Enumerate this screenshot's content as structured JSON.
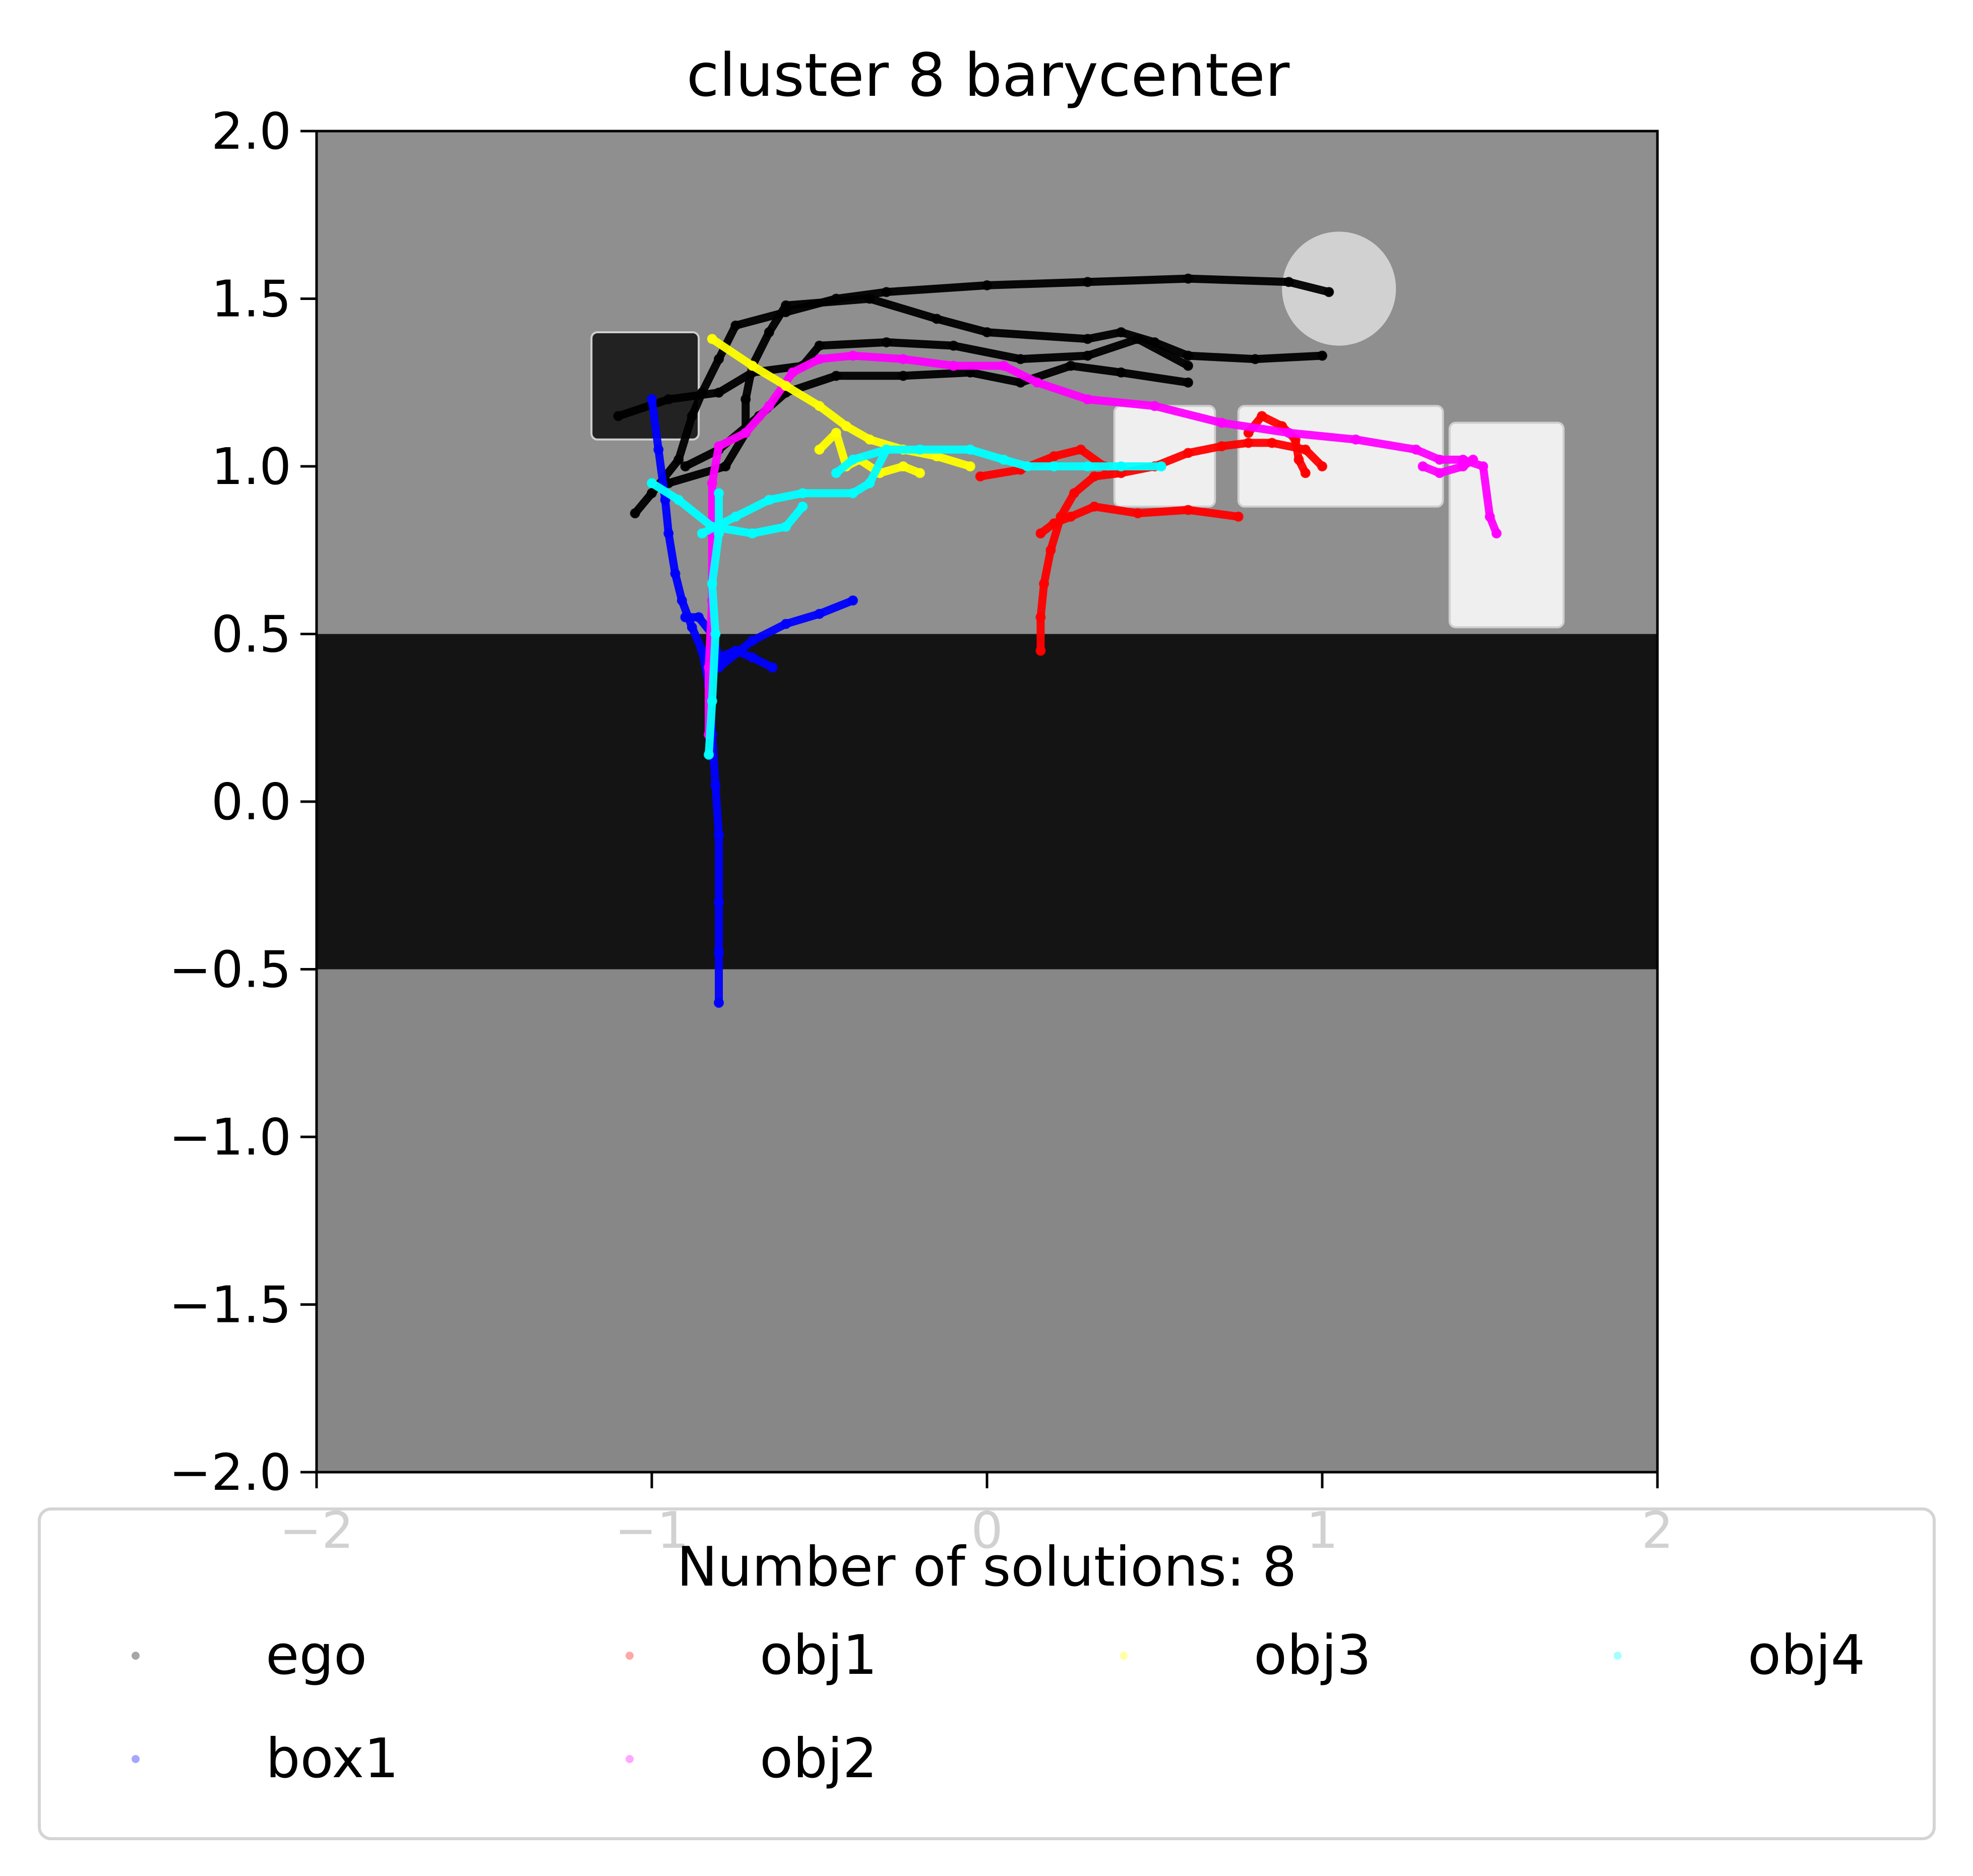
{
  "chart_data": {
    "type": "scatter",
    "title": "cluster 8 barycenter",
    "xlim": [
      -2,
      2
    ],
    "ylim": [
      -2,
      2
    ],
    "x_ticks": [
      "−2",
      "−1",
      "0",
      "1",
      "2"
    ],
    "y_ticks": [
      "2.0",
      "1.5",
      "1.0",
      "0.5",
      "0.0",
      "−0.5",
      "−1.0",
      "−1.5",
      "−2.0"
    ],
    "y_tick_values": [
      2.0,
      1.5,
      1.0,
      0.5,
      0.0,
      -0.5,
      -1.0,
      -1.5,
      -2.0
    ],
    "x_tick_values": [
      -2,
      -1,
      0,
      1,
      2
    ],
    "legend_title": "Number of solutions: 8",
    "legend_placement": "bottom-center",
    "grid": false,
    "background_regions": [
      {
        "name": "floor-upper",
        "x": [
          -2,
          2
        ],
        "y": [
          0.5,
          2
        ],
        "color": "#8f8f8f"
      },
      {
        "name": "dark-band",
        "x": [
          -2,
          2
        ],
        "y": [
          -0.5,
          0.5
        ],
        "color": "#141414"
      },
      {
        "name": "floor-lower",
        "x": [
          -2,
          2
        ],
        "y": [
          -2,
          -0.5
        ],
        "color": "#878787"
      }
    ],
    "obstacles": [
      {
        "name": "dark-box",
        "x": [
          -1.18,
          -0.86
        ],
        "y": [
          1.08,
          1.4
        ],
        "color": "#222222"
      },
      {
        "name": "white-block-1",
        "x": [
          0.38,
          0.68
        ],
        "y": [
          0.88,
          1.18
        ],
        "color": "#efefef"
      },
      {
        "name": "white-block-2",
        "x": [
          0.75,
          1.36
        ],
        "y": [
          0.88,
          1.18
        ],
        "color": "#efefef"
      },
      {
        "name": "white-block-3",
        "x": [
          1.38,
          1.72
        ],
        "y": [
          0.52,
          1.13
        ],
        "color": "#efefef"
      },
      {
        "name": "round-disc",
        "cx": 1.05,
        "cy": 1.53,
        "r": 0.17,
        "color": "#d8d8d8"
      }
    ],
    "series": [
      {
        "name": "ego",
        "color": "#000000",
        "paths": [
          [
            [
              1.02,
              1.52
            ],
            [
              0.9,
              1.55
            ],
            [
              0.6,
              1.56
            ],
            [
              0.3,
              1.55
            ],
            [
              0.0,
              1.54
            ],
            [
              -0.3,
              1.52
            ],
            [
              -0.45,
              1.5
            ],
            [
              -0.6,
              1.46
            ],
            [
              -0.75,
              1.42
            ],
            [
              -0.8,
              1.32
            ],
            [
              -0.85,
              1.22
            ],
            [
              -0.88,
              1.15
            ],
            [
              -0.92,
              1.02
            ],
            [
              -1.0,
              0.92
            ],
            [
              -1.05,
              0.86
            ]
          ],
          [
            [
              0.6,
              1.3
            ],
            [
              0.45,
              1.38
            ],
            [
              0.3,
              1.33
            ],
            [
              0.1,
              1.32
            ],
            [
              -0.1,
              1.36
            ],
            [
              -0.3,
              1.37
            ],
            [
              -0.5,
              1.36
            ],
            [
              -0.55,
              1.3
            ],
            [
              -0.7,
              1.28
            ],
            [
              -0.8,
              1.22
            ],
            [
              -0.95,
              1.2
            ],
            [
              -1.1,
              1.15
            ]
          ],
          [
            [
              1.0,
              1.33
            ],
            [
              0.8,
              1.32
            ],
            [
              0.6,
              1.33
            ],
            [
              0.5,
              1.37
            ],
            [
              0.4,
              1.4
            ],
            [
              0.3,
              1.38
            ],
            [
              0.0,
              1.4
            ],
            [
              -0.15,
              1.44
            ],
            [
              -0.35,
              1.5
            ],
            [
              -0.6,
              1.48
            ],
            [
              -0.65,
              1.4
            ],
            [
              -0.7,
              1.3
            ],
            [
              -0.72,
              1.2
            ],
            [
              -0.72,
              1.1
            ],
            [
              -0.78,
              1.0
            ],
            [
              -0.95,
              0.95
            ]
          ],
          [
            [
              0.6,
              1.25
            ],
            [
              0.4,
              1.28
            ],
            [
              0.25,
              1.3
            ],
            [
              0.1,
              1.25
            ],
            [
              -0.05,
              1.28
            ],
            [
              -0.25,
              1.27
            ],
            [
              -0.45,
              1.27
            ],
            [
              -0.6,
              1.22
            ],
            [
              -0.68,
              1.15
            ],
            [
              -0.8,
              1.05
            ],
            [
              -0.9,
              1.0
            ]
          ]
        ]
      },
      {
        "name": "box1",
        "color": "#0000ff",
        "paths": [
          [
            [
              -1.0,
              1.2
            ],
            [
              -0.98,
              1.05
            ],
            [
              -0.96,
              0.9
            ],
            [
              -0.95,
              0.8
            ],
            [
              -0.93,
              0.68
            ],
            [
              -0.91,
              0.6
            ],
            [
              -0.88,
              0.52
            ],
            [
              -0.85,
              0.45
            ],
            [
              -0.83,
              0.35
            ],
            [
              -0.82,
              0.2
            ],
            [
              -0.81,
              0.05
            ],
            [
              -0.8,
              -0.1
            ],
            [
              -0.8,
              -0.3
            ],
            [
              -0.8,
              -0.45
            ],
            [
              -0.8,
              -0.6
            ]
          ],
          [
            [
              -0.9,
              0.55
            ],
            [
              -0.86,
              0.55
            ],
            [
              -0.82,
              0.5
            ],
            [
              -0.8,
              0.43
            ],
            [
              -0.75,
              0.45
            ],
            [
              -0.7,
              0.43
            ],
            [
              -0.64,
              0.4
            ]
          ],
          [
            [
              -0.8,
              0.4
            ],
            [
              -0.7,
              0.48
            ],
            [
              -0.6,
              0.53
            ],
            [
              -0.5,
              0.56
            ],
            [
              -0.4,
              0.6
            ]
          ]
        ]
      },
      {
        "name": "obj1",
        "color": "#ff0000",
        "paths": [
          [
            [
              0.16,
              0.45
            ],
            [
              0.16,
              0.55
            ],
            [
              0.17,
              0.65
            ],
            [
              0.19,
              0.75
            ],
            [
              0.22,
              0.85
            ],
            [
              0.26,
              0.92
            ],
            [
              0.32,
              0.97
            ],
            [
              0.4,
              0.98
            ],
            [
              0.5,
              1.0
            ],
            [
              0.6,
              1.04
            ],
            [
              0.7,
              1.06
            ],
            [
              0.78,
              1.07
            ],
            [
              0.85,
              1.07
            ],
            [
              0.95,
              1.05
            ],
            [
              1.0,
              1.0
            ]
          ],
          [
            [
              -0.02,
              0.97
            ],
            [
              0.1,
              0.99
            ],
            [
              0.2,
              1.03
            ],
            [
              0.28,
              1.05
            ],
            [
              0.35,
              1.0
            ]
          ],
          [
            [
              0.78,
              1.1
            ],
            [
              0.82,
              1.15
            ],
            [
              0.88,
              1.12
            ],
            [
              0.92,
              1.08
            ],
            [
              0.93,
              1.02
            ],
            [
              0.95,
              0.98
            ]
          ],
          [
            [
              0.75,
              0.85
            ],
            [
              0.6,
              0.87
            ],
            [
              0.45,
              0.86
            ],
            [
              0.32,
              0.88
            ],
            [
              0.25,
              0.85
            ],
            [
              0.2,
              0.83
            ],
            [
              0.16,
              0.8
            ]
          ]
        ]
      },
      {
        "name": "obj2",
        "color": "#ff00ff",
        "paths": [
          [
            [
              1.52,
              0.8
            ],
            [
              1.5,
              0.85
            ],
            [
              1.48,
              1.0
            ],
            [
              1.42,
              1.02
            ],
            [
              1.35,
              1.02
            ],
            [
              1.28,
              1.05
            ],
            [
              1.1,
              1.08
            ],
            [
              0.9,
              1.1
            ],
            [
              0.7,
              1.13
            ],
            [
              0.5,
              1.18
            ],
            [
              0.3,
              1.2
            ],
            [
              0.15,
              1.25
            ],
            [
              0.05,
              1.3
            ],
            [
              -0.1,
              1.3
            ],
            [
              -0.25,
              1.32
            ],
            [
              -0.4,
              1.33
            ],
            [
              -0.5,
              1.32
            ],
            [
              -0.58,
              1.28
            ],
            [
              -0.65,
              1.18
            ],
            [
              -0.72,
              1.1
            ],
            [
              -0.8,
              1.06
            ],
            [
              -0.82,
              0.95
            ],
            [
              -0.82,
              0.8
            ],
            [
              -0.82,
              0.6
            ],
            [
              -0.83,
              0.4
            ],
            [
              -0.83,
              0.2
            ]
          ],
          [
            [
              1.3,
              1.0
            ],
            [
              1.35,
              0.98
            ],
            [
              1.42,
              1.0
            ],
            [
              1.45,
              1.02
            ]
          ]
        ]
      },
      {
        "name": "obj3",
        "color": "#ffff00",
        "paths": [
          [
            [
              -0.82,
              1.38
            ],
            [
              -0.7,
              1.3
            ],
            [
              -0.6,
              1.24
            ],
            [
              -0.5,
              1.18
            ],
            [
              -0.42,
              1.12
            ],
            [
              -0.35,
              1.08
            ],
            [
              -0.25,
              1.05
            ],
            [
              -0.15,
              1.03
            ],
            [
              -0.05,
              1.0
            ]
          ],
          [
            [
              -0.5,
              1.05
            ],
            [
              -0.45,
              1.1
            ],
            [
              -0.42,
              1.0
            ],
            [
              -0.38,
              1.02
            ],
            [
              -0.32,
              0.98
            ],
            [
              -0.25,
              1.0
            ],
            [
              -0.2,
              0.98
            ]
          ]
        ]
      },
      {
        "name": "obj4",
        "color": "#00ffff",
        "paths": [
          [
            [
              -0.83,
              0.14
            ],
            [
              -0.82,
              0.3
            ],
            [
              -0.81,
              0.5
            ],
            [
              -0.82,
              0.65
            ],
            [
              -0.8,
              0.8
            ],
            [
              -0.8,
              0.92
            ]
          ],
          [
            [
              0.52,
              1.0
            ],
            [
              0.4,
              1.0
            ],
            [
              0.3,
              1.0
            ],
            [
              0.2,
              1.0
            ],
            [
              0.12,
              1.0
            ],
            [
              0.05,
              1.02
            ],
            [
              -0.05,
              1.05
            ],
            [
              -0.2,
              1.05
            ],
            [
              -0.3,
              1.05
            ],
            [
              -0.4,
              1.02
            ],
            [
              -0.45,
              0.98
            ]
          ],
          [
            [
              -0.3,
              1.05
            ],
            [
              -0.35,
              0.95
            ],
            [
              -0.4,
              0.92
            ],
            [
              -0.55,
              0.92
            ],
            [
              -0.65,
              0.9
            ],
            [
              -0.75,
              0.85
            ],
            [
              -0.85,
              0.8
            ]
          ],
          [
            [
              -0.55,
              0.88
            ],
            [
              -0.6,
              0.82
            ],
            [
              -0.7,
              0.8
            ],
            [
              -0.82,
              0.82
            ],
            [
              -0.92,
              0.9
            ],
            [
              -1.0,
              0.95
            ]
          ]
        ]
      }
    ]
  }
}
